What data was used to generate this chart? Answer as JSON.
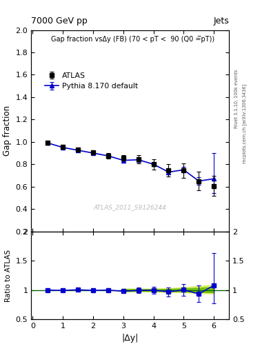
{
  "title_left": "7000 GeV pp",
  "title_right": "Jets",
  "plot_title": "Gap fraction vsΔy (FB) (70 < pT <  90 (Q0 =̅pT̅))",
  "ylabel_main": "Gap fraction",
  "ylabel_ratio": "Ratio to ATLAS",
  "xlabel": "|Δy|",
  "watermark": "ATLAS_2011_S9126244",
  "rivet_label": "Rivet 3.1.10, 100k events",
  "arxiv_label": "mcplots.cern.ch [arXiv:1306.3436]",
  "atlas_x": [
    0.5,
    1.0,
    1.5,
    2.0,
    2.5,
    3.0,
    3.5,
    4.0,
    4.5,
    5.0,
    5.5,
    6.0
  ],
  "atlas_y": [
    0.99,
    0.955,
    0.93,
    0.905,
    0.875,
    0.855,
    0.845,
    0.8,
    0.745,
    0.745,
    0.65,
    0.605
  ],
  "atlas_yerr_lo": [
    0.018,
    0.018,
    0.018,
    0.02,
    0.025,
    0.025,
    0.035,
    0.045,
    0.055,
    0.065,
    0.085,
    0.09
  ],
  "atlas_yerr_hi": [
    0.018,
    0.018,
    0.018,
    0.02,
    0.025,
    0.025,
    0.035,
    0.045,
    0.055,
    0.065,
    0.085,
    0.09
  ],
  "pythia_x": [
    0.5,
    1.0,
    1.5,
    2.0,
    2.5,
    3.0,
    3.5,
    4.0,
    4.5,
    5.0,
    5.5,
    6.0
  ],
  "pythia_y": [
    0.99,
    0.95,
    0.925,
    0.9,
    0.875,
    0.835,
    0.84,
    0.8,
    0.73,
    0.75,
    0.65,
    0.67
  ],
  "pythia_yerr_lo": [
    0.005,
    0.005,
    0.005,
    0.006,
    0.007,
    0.008,
    0.01,
    0.014,
    0.018,
    0.025,
    0.035,
    0.13
  ],
  "pythia_yerr_hi": [
    0.005,
    0.005,
    0.005,
    0.006,
    0.007,
    0.008,
    0.01,
    0.014,
    0.018,
    0.025,
    0.035,
    0.23
  ],
  "ratio_x": [
    0.5,
    1.0,
    1.5,
    2.0,
    2.5,
    3.0,
    3.5,
    4.0,
    4.5,
    5.0,
    5.5,
    6.0
  ],
  "ratio_y": [
    1.0,
    0.995,
    1.005,
    0.995,
    1.0,
    0.98,
    0.995,
    1.0,
    0.97,
    1.005,
    0.935,
    1.08
  ],
  "ratio_yerr_lo": [
    0.02,
    0.02,
    0.02,
    0.022,
    0.03,
    0.032,
    0.045,
    0.06,
    0.08,
    0.1,
    0.14,
    0.3
  ],
  "ratio_yerr_hi": [
    0.02,
    0.02,
    0.02,
    0.022,
    0.03,
    0.032,
    0.045,
    0.06,
    0.08,
    0.1,
    0.14,
    0.55
  ],
  "band_x_lo": [
    3.0,
    3.5,
    4.0,
    4.5,
    5.0,
    5.5,
    6.0
  ],
  "band_outer_lo": [
    0.975,
    0.975,
    0.975,
    0.968,
    0.96,
    0.95,
    0.94
  ],
  "band_outer_hi": [
    1.025,
    1.025,
    1.025,
    1.032,
    1.05,
    1.07,
    1.09
  ],
  "band_inner_lo": [
    0.985,
    0.985,
    0.985,
    0.98,
    0.975,
    0.968,
    0.96
  ],
  "band_inner_hi": [
    1.015,
    1.015,
    1.015,
    1.02,
    1.028,
    1.04,
    1.055
  ],
  "main_ylim": [
    0.2,
    2.0
  ],
  "ratio_ylim": [
    0.5,
    2.0
  ],
  "xlim": [
    -0.05,
    6.5
  ],
  "atlas_color": "black",
  "pythia_color": "#0000cc",
  "band_color_inner": "#66bb00",
  "band_color_outer": "#ddee66",
  "ref_line_color": "#006600",
  "main_yticks": [
    0.2,
    0.4,
    0.6,
    0.8,
    1.0,
    1.2,
    1.4,
    1.6,
    1.8,
    2.0
  ],
  "ratio_yticks": [
    0.5,
    1.0,
    1.5,
    2.0
  ],
  "ratio_yticklabels": [
    "0.5",
    "1",
    "1.5",
    "2"
  ],
  "xticks": [
    0,
    1,
    2,
    3,
    4,
    5,
    6
  ]
}
